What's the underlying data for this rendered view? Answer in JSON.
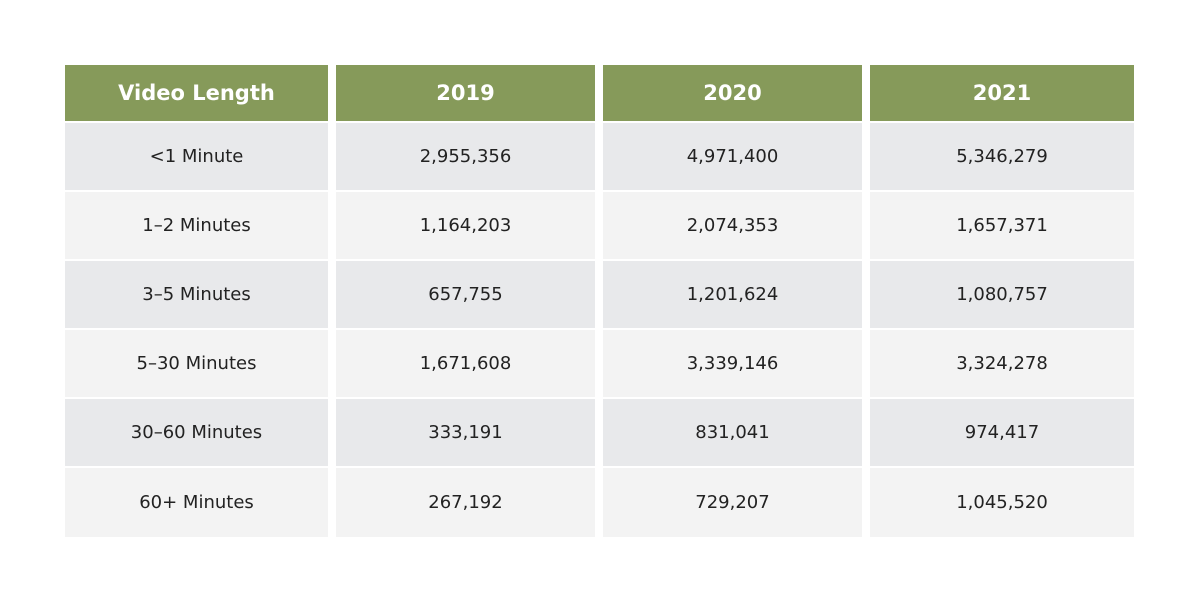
{
  "colors": {
    "header_bg": "#869a5a",
    "header_text": "#ffffff",
    "row_odd": "#e8e9eb",
    "row_even": "#f3f3f3"
  },
  "chart_data": {
    "type": "table",
    "columns": [
      "Video Length",
      "2019",
      "2020",
      "2021"
    ],
    "rows": [
      [
        "<1 Minute",
        "2,955,356",
        "4,971,400",
        "5,346,279"
      ],
      [
        "1–2 Minutes",
        "1,164,203",
        "2,074,353",
        "1,657,371"
      ],
      [
        "3–5 Minutes",
        "657,755",
        "1,201,624",
        "1,080,757"
      ],
      [
        "5–30 Minutes",
        "1,671,608",
        "3,339,146",
        "3,324,278"
      ],
      [
        "30–60 Minutes",
        "333,191",
        "831,041",
        "974,417"
      ],
      [
        "60+ Minutes",
        "267,192",
        "729,207",
        "1,045,520"
      ]
    ],
    "series": [
      {
        "name": "2019",
        "values": [
          2955356,
          1164203,
          657755,
          1671608,
          333191,
          267192
        ]
      },
      {
        "name": "2020",
        "values": [
          4971400,
          2074353,
          1201624,
          3339146,
          831041,
          729207
        ]
      },
      {
        "name": "2021",
        "values": [
          5346279,
          1657371,
          1080757,
          3324278,
          974417,
          1045520
        ]
      }
    ],
    "categories": [
      "<1 Minute",
      "1–2 Minutes",
      "3–5 Minutes",
      "5–30 Minutes",
      "30–60 Minutes",
      "60+ Minutes"
    ]
  }
}
